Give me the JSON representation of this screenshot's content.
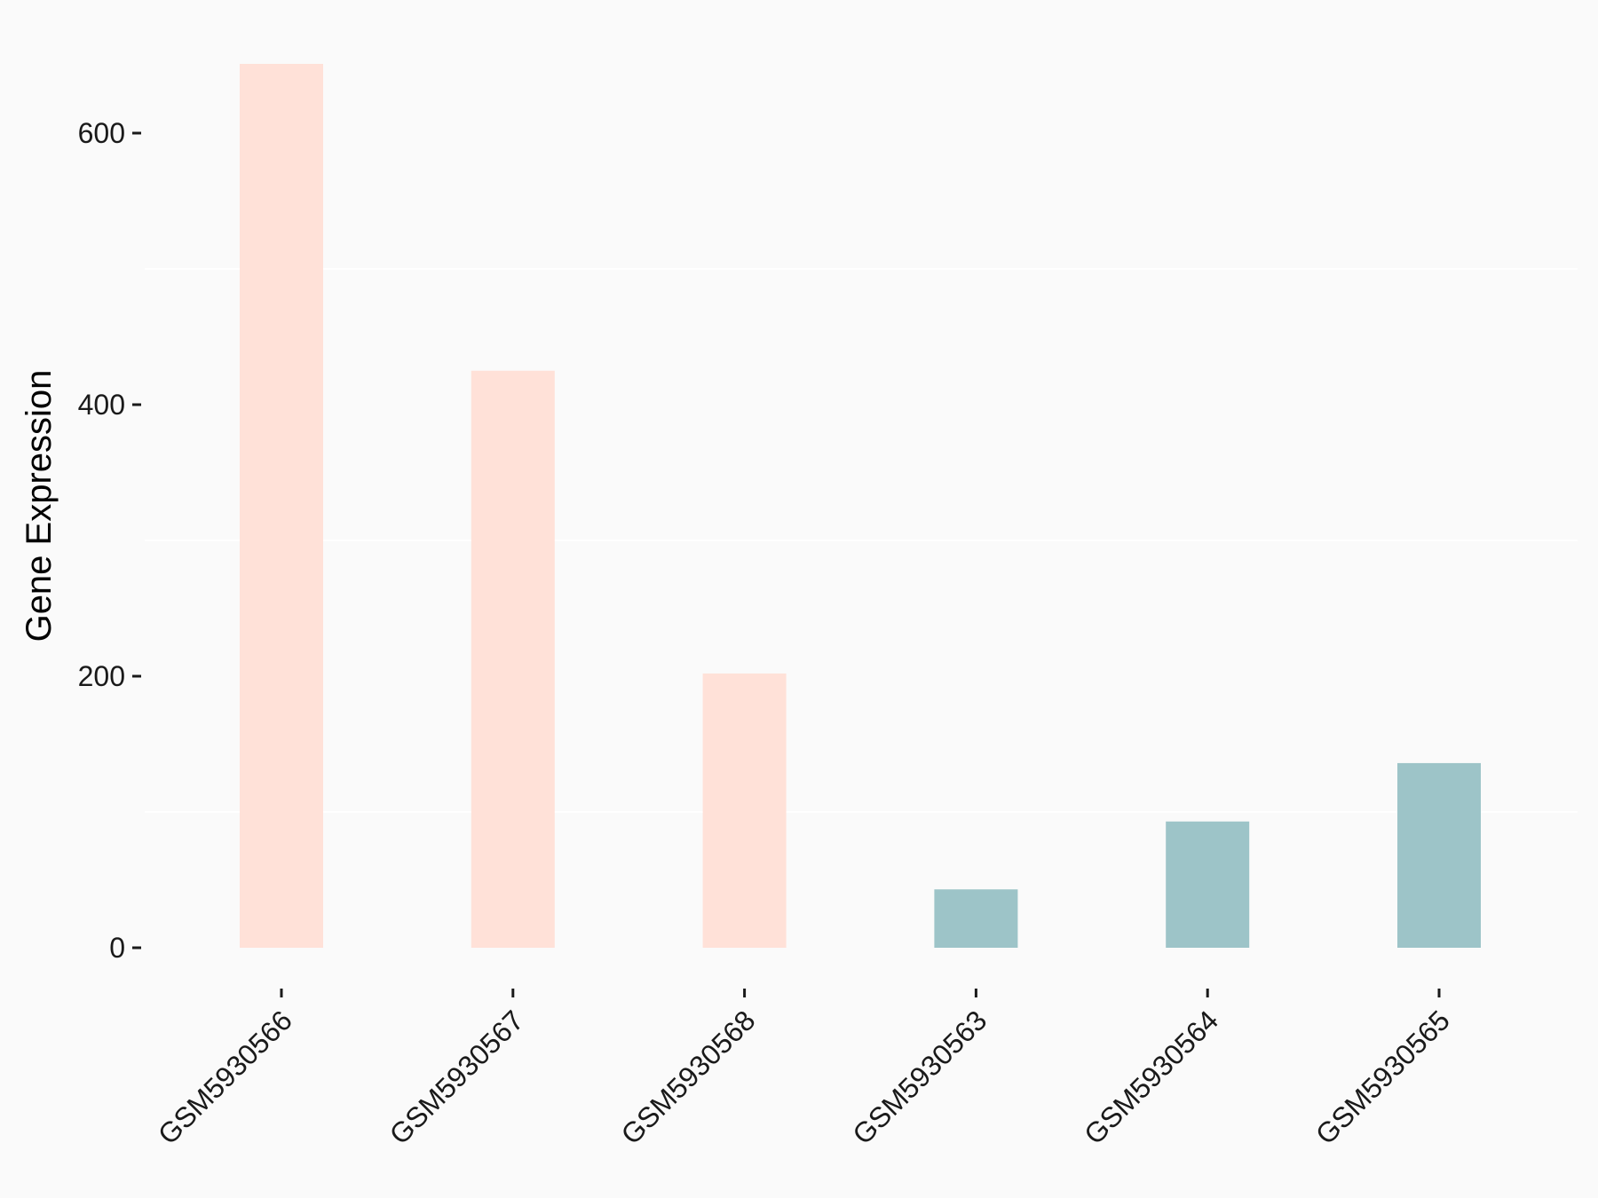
{
  "chart_data": {
    "type": "bar",
    "title": "",
    "xlabel": "",
    "ylabel": "Gene Expression",
    "categories": [
      "GSM5930566",
      "GSM5930567",
      "GSM5930568",
      "GSM5930563",
      "GSM5930564",
      "GSM5930565"
    ],
    "values": [
      651,
      425,
      202,
      43,
      93,
      136
    ],
    "bar_colors": [
      "#ffe1d8",
      "#ffe1d8",
      "#ffe1d8",
      "#9dc4c8",
      "#9dc4c8",
      "#9dc4c8"
    ],
    "ylim": [
      -30,
      653
    ],
    "yticks": [
      0,
      200,
      400,
      600
    ],
    "ytick_labels": [
      "0",
      "200",
      "400",
      "600"
    ],
    "grid": "horizontal minor lines only (white)",
    "legend": "none"
  },
  "colors": {
    "background": "#fafafa",
    "grid": "#ffffff",
    "axis_text": "#1a1a1a"
  }
}
